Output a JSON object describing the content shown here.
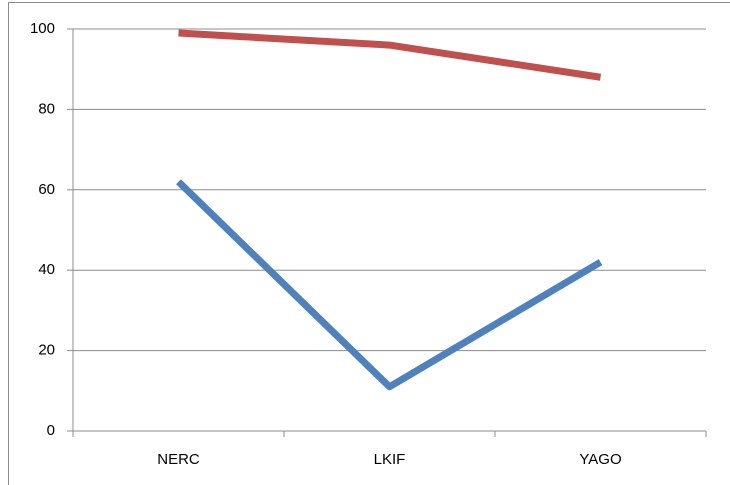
{
  "chart_data": {
    "type": "line",
    "categories": [
      "NERC",
      "LKIF",
      "YAGO"
    ],
    "series": [
      {
        "color": "#c0504d",
        "values": [
          99,
          96,
          88
        ]
      },
      {
        "color": "#4f81bd",
        "values": [
          62,
          11,
          42
        ]
      }
    ],
    "ylim": [
      0,
      100
    ],
    "yticks": [
      0,
      20,
      40,
      60,
      80,
      100
    ],
    "grid": true
  }
}
